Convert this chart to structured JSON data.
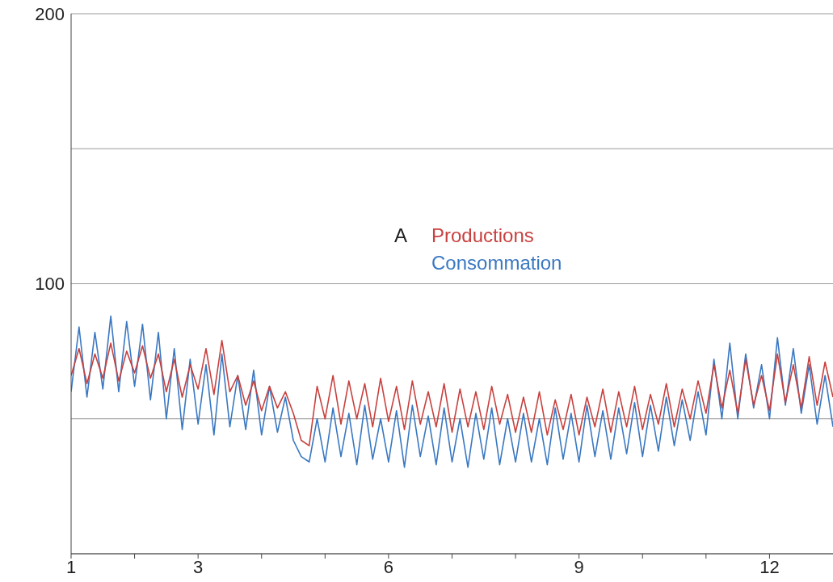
{
  "chart_data": {
    "type": "line",
    "annotations": [
      "A"
    ],
    "x": [
      1,
      1.125,
      1.25,
      1.375,
      1.5,
      1.625,
      1.75,
      1.875,
      2,
      2.125,
      2.25,
      2.375,
      2.5,
      2.625,
      2.75,
      2.875,
      3,
      3.125,
      3.25,
      3.375,
      3.5,
      3.625,
      3.75,
      3.875,
      4,
      4.125,
      4.25,
      4.375,
      4.5,
      4.625,
      4.75,
      4.875,
      5,
      5.125,
      5.25,
      5.375,
      5.5,
      5.625,
      5.75,
      5.875,
      6,
      6.125,
      6.25,
      6.375,
      6.5,
      6.625,
      6.75,
      6.875,
      7,
      7.125,
      7.25,
      7.375,
      7.5,
      7.625,
      7.75,
      7.875,
      8,
      8.125,
      8.25,
      8.375,
      8.5,
      8.625,
      8.75,
      8.875,
      9,
      9.125,
      9.25,
      9.375,
      9.5,
      9.625,
      9.75,
      9.875,
      10,
      10.125,
      10.25,
      10.375,
      10.5,
      10.625,
      10.75,
      10.875,
      11,
      11.125,
      11.25,
      11.375,
      11.5,
      11.625,
      11.75,
      11.875,
      12,
      12.125,
      12.25,
      12.375,
      12.5,
      12.625,
      12.75,
      12.875,
      13
    ],
    "series": [
      {
        "name": "Consommation",
        "color": "#3a78c2",
        "values": [
          60,
          84,
          58,
          82,
          61,
          88,
          60,
          86,
          62,
          85,
          57,
          82,
          50,
          76,
          46,
          72,
          48,
          70,
          44,
          74,
          47,
          66,
          46,
          68,
          44,
          62,
          45,
          58,
          42,
          36,
          34,
          50,
          34,
          54,
          36,
          52,
          33,
          55,
          35,
          50,
          34,
          53,
          32,
          55,
          36,
          51,
          33,
          54,
          34,
          50,
          32,
          52,
          35,
          54,
          33,
          50,
          34,
          52,
          34,
          50,
          33,
          54,
          35,
          52,
          34,
          55,
          36,
          53,
          35,
          54,
          37,
          56,
          36,
          55,
          38,
          58,
          40,
          57,
          42,
          60,
          44,
          72,
          50,
          78,
          50,
          74,
          54,
          70,
          50,
          80,
          55,
          76,
          52,
          70,
          48,
          66,
          47
        ]
      },
      {
        "name": "Productions",
        "color": "#c8413f",
        "values": [
          66,
          76,
          63,
          74,
          65,
          78,
          64,
          75,
          67,
          77,
          65,
          74,
          60,
          72,
          58,
          70,
          61,
          76,
          59,
          79,
          60,
          66,
          55,
          64,
          53,
          62,
          54,
          60,
          52,
          42,
          40,
          62,
          50,
          66,
          48,
          64,
          50,
          63,
          47,
          65,
          49,
          62,
          46,
          64,
          48,
          60,
          47,
          63,
          45,
          61,
          47,
          60,
          46,
          62,
          48,
          59,
          45,
          58,
          45,
          60,
          44,
          57,
          46,
          59,
          44,
          58,
          47,
          61,
          45,
          60,
          47,
          62,
          46,
          59,
          48,
          63,
          47,
          61,
          50,
          64,
          52,
          70,
          54,
          68,
          52,
          72,
          55,
          66,
          53,
          74,
          56,
          70,
          54,
          73,
          55,
          71,
          58
        ]
      }
    ],
    "xlim": [
      1,
      13
    ],
    "xticks": [
      1,
      {
        "value": 2,
        "label": null
      },
      3,
      {
        "value": 4,
        "label": null
      },
      {
        "value": 5,
        "label": null
      },
      6,
      {
        "value": 7,
        "label": null
      },
      {
        "value": 8,
        "label": null
      },
      9,
      {
        "value": 10,
        "label": null
      },
      {
        "value": 11,
        "label": null
      },
      12
    ],
    "ylim": [
      0,
      200
    ],
    "yticks": [
      {
        "value": 50,
        "label": null
      },
      100,
      {
        "value": 150,
        "label": null
      },
      200
    ],
    "grid": "y",
    "legend": "top"
  }
}
